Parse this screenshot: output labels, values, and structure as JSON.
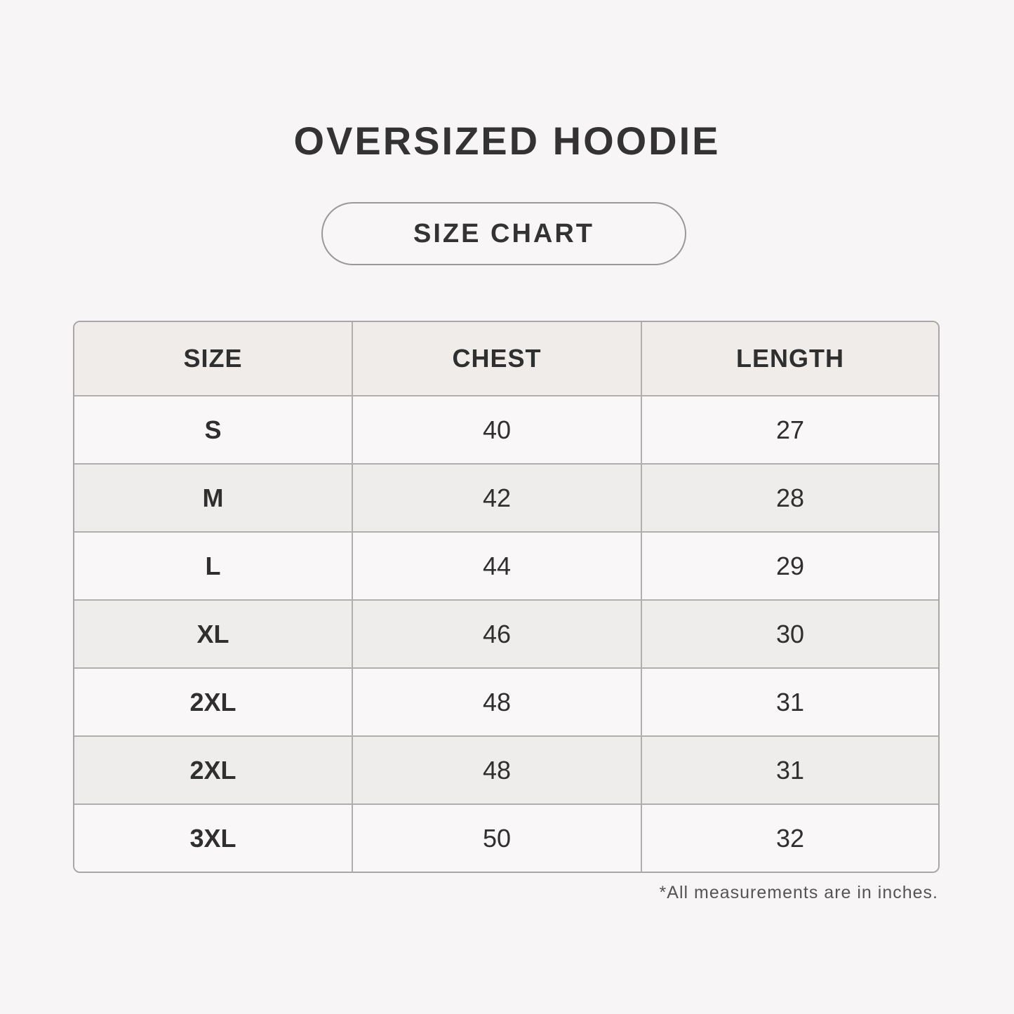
{
  "title": "OVERSIZED HOODIE",
  "subtitle": "SIZE CHART",
  "table": {
    "headers": [
      "SIZE",
      "CHEST",
      "LENGTH"
    ],
    "rows": [
      [
        "S",
        "40",
        "27"
      ],
      [
        "M",
        "42",
        "28"
      ],
      [
        "L",
        "44",
        "29"
      ],
      [
        "XL",
        "46",
        "30"
      ],
      [
        "2XL",
        "48",
        "31"
      ],
      [
        "2XL",
        "48",
        "31"
      ],
      [
        "3XL",
        "50",
        "32"
      ]
    ]
  },
  "note": "*All measurements are in inches."
}
